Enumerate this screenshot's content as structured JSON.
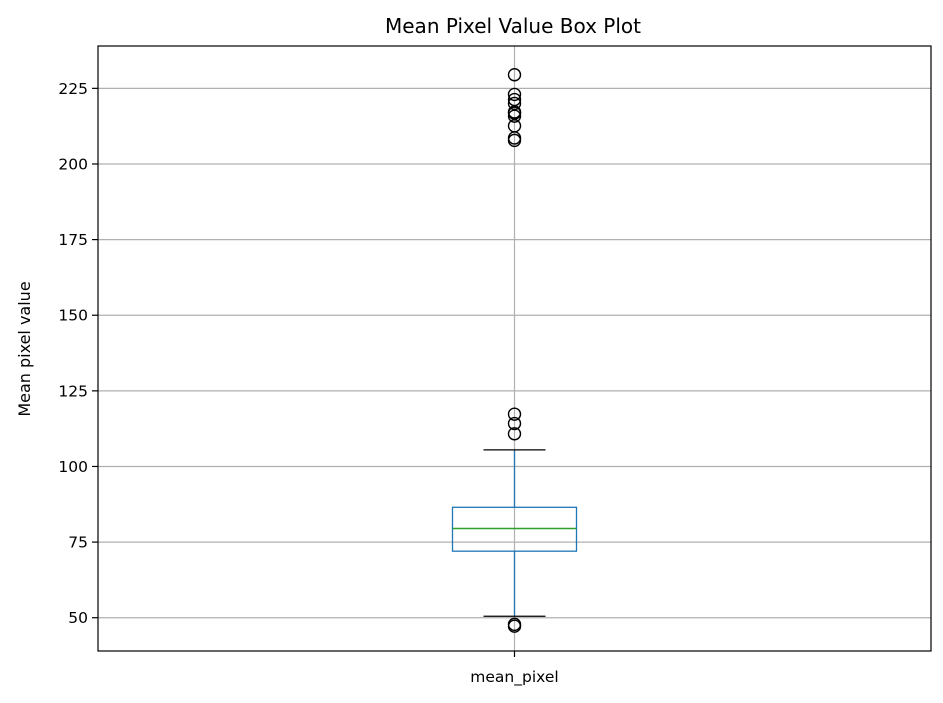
{
  "chart_data": {
    "type": "box",
    "title": "Mean Pixel Value Box Plot",
    "xlabel": "",
    "ylabel": "Mean pixel value",
    "categories": [
      "mean_pixel"
    ],
    "yticks": [
      50,
      75,
      100,
      125,
      150,
      175,
      200,
      225
    ],
    "ylim": [
      39,
      239
    ],
    "grid": true,
    "box": {
      "whisker_low": 50.5,
      "q1": 72,
      "median": 79.5,
      "q3": 86.5,
      "whisker_high": 105.5
    },
    "outliers": [
      47.2,
      47.8,
      110.8,
      114.2,
      117.3,
      207.8,
      208.6,
      212.6,
      215.8,
      216.8,
      217.2,
      220.0,
      221.3,
      223.0,
      229.5
    ],
    "colors": {
      "box": "#1f77b4",
      "median": "#2ca02c",
      "whisker_cap": "#000000",
      "grid": "#b0b0b0"
    }
  }
}
